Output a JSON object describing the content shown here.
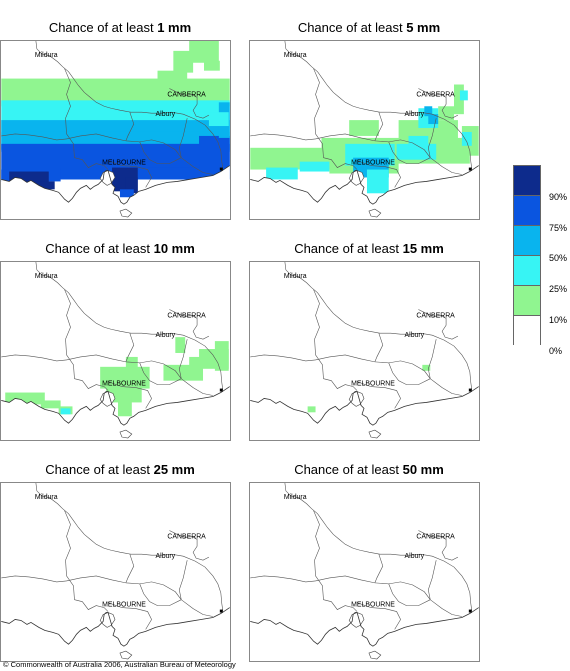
{
  "panels": [
    {
      "title_prefix": "Chance of at least ",
      "amount": "1 mm"
    },
    {
      "title_prefix": "Chance of at least ",
      "amount": "5 mm"
    },
    {
      "title_prefix": "Chance of at least ",
      "amount": "10 mm"
    },
    {
      "title_prefix": "Chance of at least ",
      "amount": "15 mm"
    },
    {
      "title_prefix": "Chance of at least ",
      "amount": "25 mm"
    },
    {
      "title_prefix": "Chance of at least ",
      "amount": "50 mm"
    }
  ],
  "place_labels": {
    "mildura": "Mildura",
    "canberra": "CANBERRA",
    "albury": "Albury",
    "melbourne": "MELBOURNE"
  },
  "legend": {
    "colors": [
      "#0d2b8c",
      "#0a55e0",
      "#09b4ee",
      "#37f4f4",
      "#90f590",
      "#ffffff"
    ],
    "ticks": [
      "90%",
      "75%",
      "50%",
      "25%",
      "10%",
      "0%"
    ]
  },
  "copyright": "© Commonwealth of Australia 2006, Australian Bureau of Meteorology"
}
